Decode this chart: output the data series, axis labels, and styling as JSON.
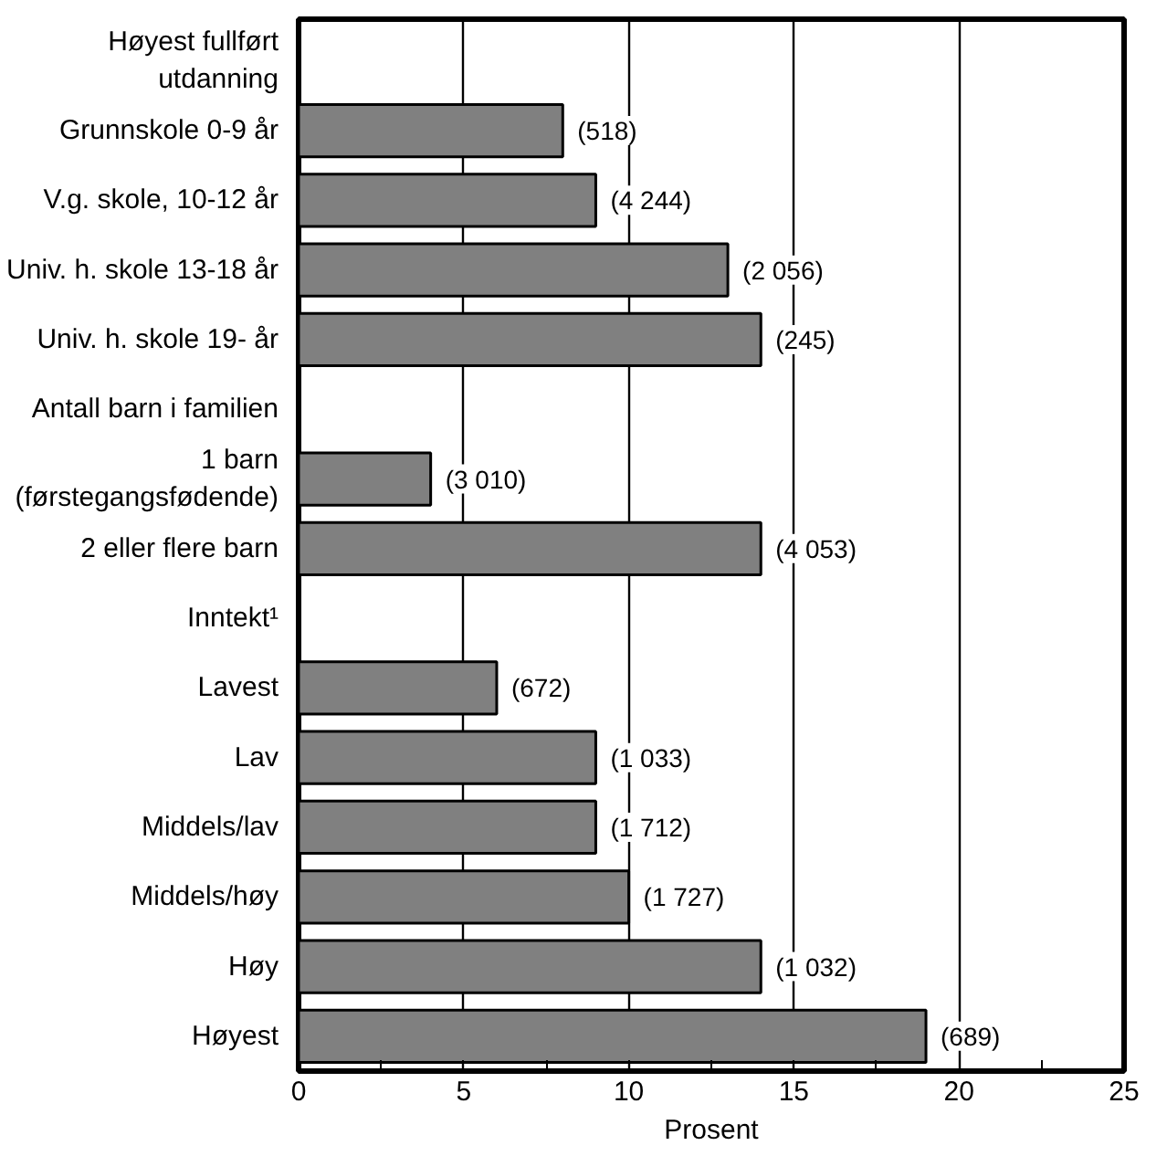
{
  "chart_data": {
    "type": "bar",
    "orientation": "horizontal",
    "xlabel": "Prosent",
    "categories": [
      "Høyest fullført\nutdanning",
      "Grunnskole 0-9 år",
      "V.g. skole, 10-12 år",
      "Univ. h. skole 13-18 år",
      "Univ. h. skole 19- år",
      "Antall barn i familien",
      "1 barn\n(førstegangsfødende)",
      "2 eller flere barn",
      "Inntekt¹",
      "Lavest",
      "Lav",
      "Middels/lav",
      "Middels/høy",
      "Høy",
      "Høyest"
    ],
    "values": [
      null,
      8,
      9,
      13,
      14,
      null,
      4,
      14,
      null,
      6,
      9,
      9,
      10,
      14,
      19
    ],
    "annotations": [
      {
        "text": "(518)",
        "x": 8,
        "y": "Grunnskole 0-9 år"
      },
      {
        "text": "(4 244)",
        "x": 9,
        "y": "V.g. skole, 10-12 år"
      },
      {
        "text": "(2 056)",
        "x": 13,
        "y": "Univ. h. skole 13-18 år"
      },
      {
        "text": "(245)",
        "x": 14,
        "y": "Univ. h. skole 19- år"
      },
      {
        "text": "(3 010)",
        "x": 4,
        "y": "1 barn\n(førstegangsfødende)"
      },
      {
        "text": "(4 053)",
        "x": 14,
        "y": "2 eller flere barn"
      },
      {
        "text": "(672)",
        "x": 6,
        "y": "Lavest"
      },
      {
        "text": "(1 033)",
        "x": 9,
        "y": "Lav"
      },
      {
        "text": "(1 712)",
        "x": 9,
        "y": "Middels/lav"
      },
      {
        "text": "(1 727)",
        "x": 10,
        "y": "Middels/høy"
      },
      {
        "text": "(1 032)",
        "x": 14,
        "y": "Høy"
      },
      {
        "text": "(689)",
        "x": 19,
        "y": "Høyest"
      }
    ],
    "color": "#808080",
    "xlim": [
      0,
      25
    ],
    "xticks": [
      0,
      5,
      10,
      15,
      20,
      25
    ],
    "grid": "x"
  }
}
